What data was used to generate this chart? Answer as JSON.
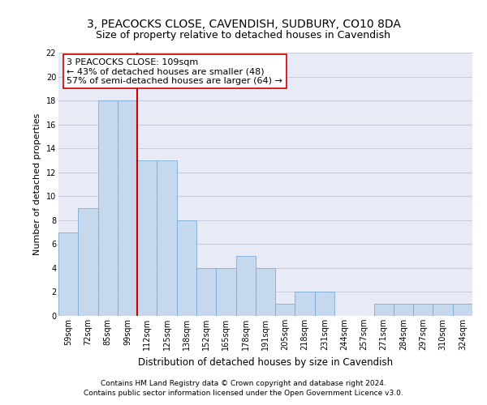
{
  "title1": "3, PEACOCKS CLOSE, CAVENDISH, SUDBURY, CO10 8DA",
  "title2": "Size of property relative to detached houses in Cavendish",
  "xlabel": "Distribution of detached houses by size in Cavendish",
  "ylabel": "Number of detached properties",
  "categories": [
    "59sqm",
    "72sqm",
    "85sqm",
    "99sqm",
    "112sqm",
    "125sqm",
    "138sqm",
    "152sqm",
    "165sqm",
    "178sqm",
    "191sqm",
    "205sqm",
    "218sqm",
    "231sqm",
    "244sqm",
    "257sqm",
    "271sqm",
    "284sqm",
    "297sqm",
    "310sqm",
    "324sqm"
  ],
  "values": [
    7,
    9,
    18,
    18,
    13,
    13,
    8,
    4,
    4,
    5,
    4,
    1,
    2,
    2,
    0,
    0,
    1,
    1,
    1,
    1,
    1
  ],
  "bar_color": "#c5d8ee",
  "bar_edge_color": "#7aadd4",
  "highlight_color": "#cc0000",
  "annotation_line1": "3 PEACOCKS CLOSE: 109sqm",
  "annotation_line2": "← 43% of detached houses are smaller (48)",
  "annotation_line3": "57% of semi-detached houses are larger (64) →",
  "annotation_box_color": "#ffffff",
  "annotation_box_edge": "#cc0000",
  "ylim": [
    0,
    22
  ],
  "yticks": [
    0,
    2,
    4,
    6,
    8,
    10,
    12,
    14,
    16,
    18,
    20,
    22
  ],
  "footer1": "Contains HM Land Registry data © Crown copyright and database right 2024.",
  "footer2": "Contains public sector information licensed under the Open Government Licence v3.0.",
  "grid_color": "#c8cce0",
  "bg_color": "#e8eaf6",
  "title1_fontsize": 10,
  "title2_fontsize": 9,
  "xlabel_fontsize": 8.5,
  "ylabel_fontsize": 8,
  "tick_fontsize": 7,
  "footer_fontsize": 6.5,
  "annotation_fontsize": 8
}
